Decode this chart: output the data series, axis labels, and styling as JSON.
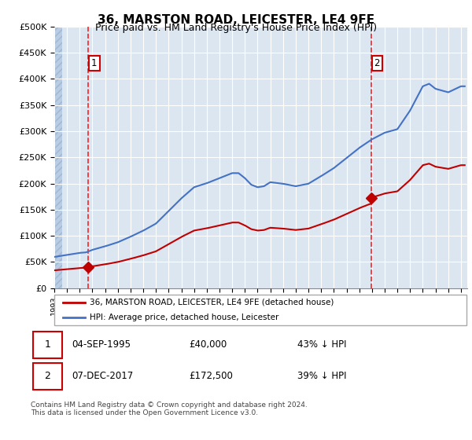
{
  "title": "36, MARSTON ROAD, LEICESTER, LE4 9FE",
  "subtitle": "Price paid vs. HM Land Registry's House Price Index (HPI)",
  "ylabel_ticks": [
    "£0",
    "£50K",
    "£100K",
    "£150K",
    "£200K",
    "£250K",
    "£300K",
    "£350K",
    "£400K",
    "£450K",
    "£500K"
  ],
  "ytick_values": [
    0,
    50000,
    100000,
    150000,
    200000,
    250000,
    300000,
    350000,
    400000,
    450000,
    500000
  ],
  "ylim": [
    0,
    500000
  ],
  "xlim_start": 1993.0,
  "xlim_end": 2025.5,
  "hpi_color": "#4472c4",
  "price_color": "#c00000",
  "vline_color": "#ff0000",
  "purchase1_year": 1995.67,
  "purchase1_price": 40000,
  "purchase2_year": 2017.92,
  "purchase2_price": 172500,
  "legend_label1": "36, MARSTON ROAD, LEICESTER, LE4 9FE (detached house)",
  "legend_label2": "HPI: Average price, detached house, Leicester",
  "table_row1": [
    "1",
    "04-SEP-1995",
    "£40,000",
    "43% ↓ HPI"
  ],
  "table_row2": [
    "2",
    "07-DEC-2017",
    "£172,500",
    "39% ↓ HPI"
  ],
  "footer": "Contains HM Land Registry data © Crown copyright and database right 2024.\nThis data is licensed under the Open Government Licence v3.0.",
  "background_color": "#dce6f1",
  "grid_color": "#ffffff",
  "title_fontsize": 11,
  "subtitle_fontsize": 9
}
